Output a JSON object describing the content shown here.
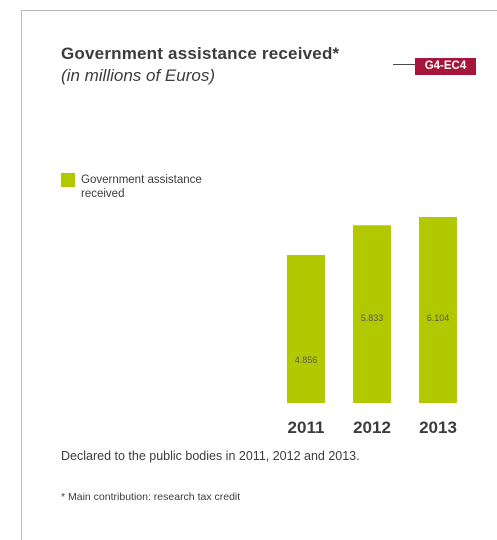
{
  "header": {
    "title": "Government assistance received*",
    "subtitle": "(in millions of Euros)",
    "badge": "G4-EC4"
  },
  "legend": {
    "label": "Government assistance received"
  },
  "chart_data": {
    "type": "bar",
    "categories": [
      "2011",
      "2012",
      "2013"
    ],
    "series": [
      {
        "name": "Government assistance received",
        "values": [
          4.856,
          5.833,
          6.104
        ],
        "labels": [
          "4.856",
          "5.833",
          "6.104"
        ]
      }
    ],
    "colors": {
      "bar": "#b2c800"
    },
    "ylim": [
      0,
      6.104
    ],
    "grid": false,
    "legend_position": "left"
  },
  "notes": {
    "declared": "Declared to the public bodies in 2011, 2012 and 2013.",
    "footnote": "* Main contribution: research tax credit"
  },
  "colors": {
    "accent": "#b2c800",
    "badge": "#a6153a"
  }
}
